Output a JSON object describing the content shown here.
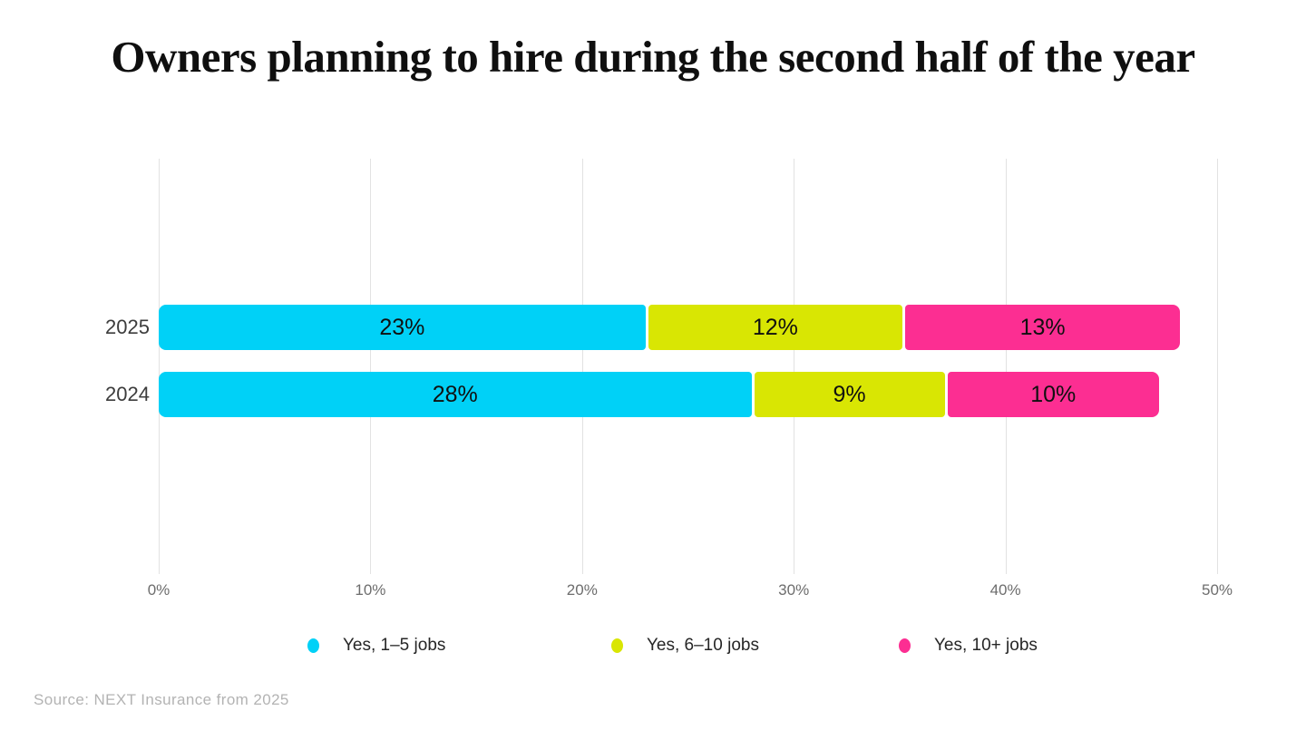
{
  "title": "Owners planning to hire during the second half of the year",
  "source": "Source: NEXT Insurance from 2025",
  "colors": {
    "series_cyan": "#00d1f7",
    "series_yellow": "#d9e603",
    "series_pink": "#fc2e92",
    "gridline": "#e2e2e2",
    "value_label": "#101010",
    "axis_label": "#6d6d6d",
    "category_label": "#3c3c3c",
    "legend_text": "#262626",
    "source_text": "#b3b3b3"
  },
  "chart_data": {
    "type": "bar",
    "orientation": "horizontal",
    "stacked": true,
    "title": "Owners planning to hire during the second half of the year",
    "categories": [
      "2025",
      "2024"
    ],
    "series": [
      {
        "name": "Yes, 1–5 jobs",
        "color": "#00d1f7",
        "values": [
          23,
          28
        ]
      },
      {
        "name": "Yes, 6–10 jobs",
        "color": "#d9e603",
        "values": [
          12,
          9
        ]
      },
      {
        "name": "Yes, 10+ jobs",
        "color": "#fc2e92",
        "values": [
          13,
          10
        ]
      }
    ],
    "value_labels": [
      [
        "23%",
        "12%",
        "13%"
      ],
      [
        "28%",
        "9%",
        "10%"
      ]
    ],
    "xlabel": "",
    "ylabel": "",
    "xlim": [
      0,
      50
    ],
    "x_ticks": [
      {
        "value": 0,
        "label": "0%"
      },
      {
        "value": 10,
        "label": "10%"
      },
      {
        "value": 20,
        "label": "20%"
      },
      {
        "value": 30,
        "label": "30%"
      },
      {
        "value": 40,
        "label": "40%"
      },
      {
        "value": 50,
        "label": "50%"
      }
    ],
    "grid": "vertical",
    "legend_position": "bottom"
  }
}
